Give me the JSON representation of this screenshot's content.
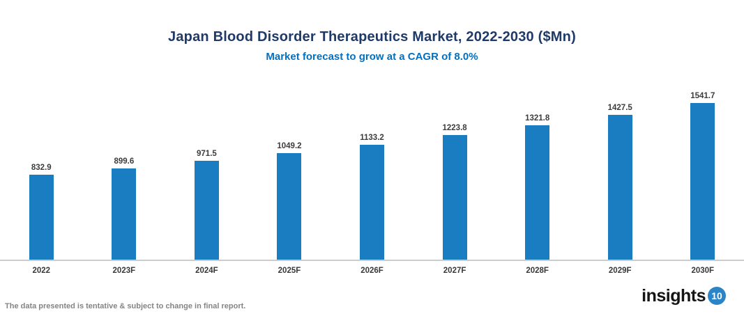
{
  "header": {
    "title": "Japan Blood Disorder Therapeutics Market, 2022-2030 ($Mn)",
    "subtitle": "Market forecast to grow at a CAGR of 8.0%"
  },
  "chart_data": {
    "type": "bar",
    "categories": [
      "2022",
      "2023F",
      "2024F",
      "2025F",
      "2026F",
      "2027F",
      "2028F",
      "2029F",
      "2030F"
    ],
    "values": [
      832.9,
      899.6,
      971.5,
      1049.2,
      1133.2,
      1223.8,
      1321.8,
      1427.5,
      1541.7
    ],
    "title": "Japan Blood Disorder Therapeutics Market, 2022-2030 ($Mn)",
    "subtitle": "Market forecast to grow at a CAGR of 8.0%",
    "xlabel": "",
    "ylabel": "",
    "ylim": [
      0,
      1600
    ],
    "value_labels": true,
    "grid": false,
    "legend": false,
    "bar_color": "#1a7cc1",
    "axis_line_color": "#cccccc"
  },
  "footer": {
    "disclaimer": "The data presented is tentative & subject to change in final report.",
    "logo_text": "insights",
    "logo_badge": "10"
  },
  "colors": {
    "title": "#1f3a68",
    "subtitle": "#0070c0",
    "bar": "#1a7cc1",
    "value_label": "#3c3c3c",
    "x_label": "#383838",
    "disclaimer": "#848484",
    "logo_badge_bg": "#2b84c6"
  }
}
